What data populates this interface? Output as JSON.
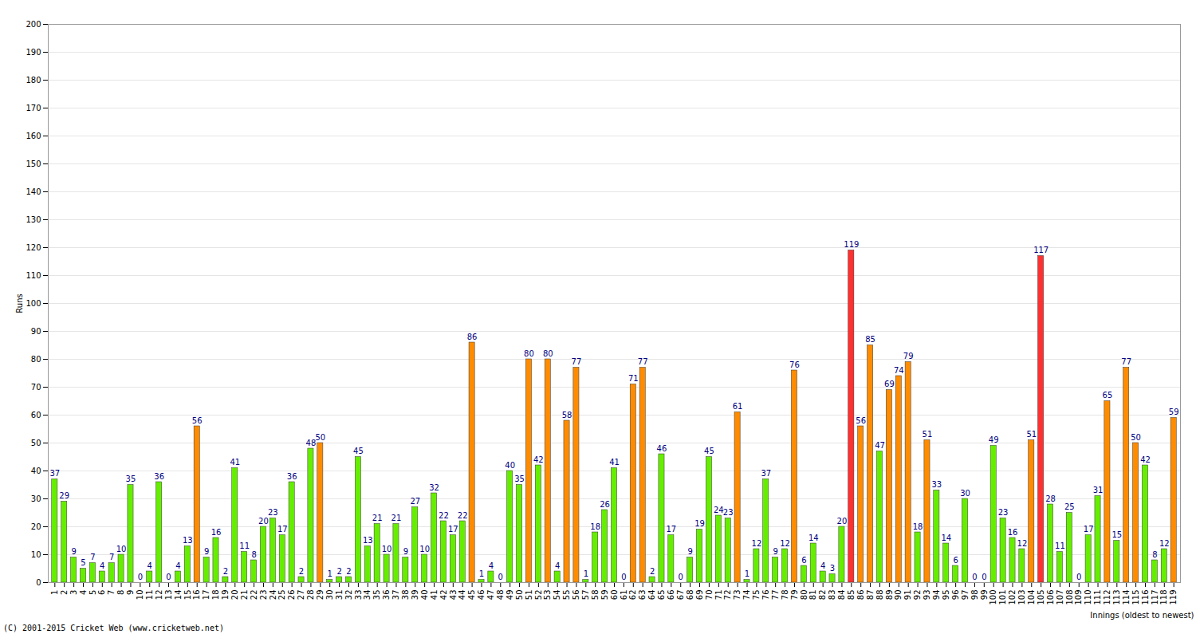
{
  "chart_data": {
    "type": "bar",
    "y_label": "Runs",
    "x_label": "Innings (oldest to newest)",
    "caption": "(C) 2001-2015 Cricket Web (www.cricketweb.net)",
    "categories": [
      "1",
      "2",
      "3",
      "4",
      "5",
      "6",
      "7",
      "8",
      "9",
      "10",
      "11",
      "12",
      "13",
      "14",
      "15",
      "16",
      "17",
      "18",
      "19",
      "20",
      "21",
      "22",
      "23",
      "24",
      "25",
      "26",
      "27",
      "28",
      "29",
      "30",
      "31",
      "32",
      "33",
      "34",
      "35",
      "36",
      "37",
      "38",
      "39",
      "40",
      "41",
      "42",
      "43",
      "44",
      "45",
      "46",
      "47",
      "48",
      "49",
      "50",
      "51",
      "52",
      "53",
      "54",
      "55",
      "56",
      "57",
      "58",
      "59",
      "60",
      "61",
      "62",
      "63",
      "64",
      "65",
      "66",
      "67",
      "68",
      "69",
      "70",
      "71",
      "72",
      "73",
      "74",
      "75",
      "76",
      "77",
      "78",
      "79",
      "80",
      "81",
      "82",
      "83",
      "84",
      "85",
      "86",
      "87",
      "88",
      "89",
      "90",
      "91",
      "92",
      "93",
      "94",
      "95",
      "96",
      "97",
      "98",
      "99",
      "100",
      "101",
      "102",
      "103",
      "104",
      "105",
      "106",
      "107",
      "108",
      "109",
      "110",
      "111",
      "112",
      "113",
      "114",
      "115",
      "116",
      "117",
      "118",
      "119"
    ],
    "values": [
      37,
      29,
      9,
      5,
      7,
      4,
      7,
      10,
      35,
      0,
      4,
      36,
      0,
      4,
      13,
      56,
      9,
      16,
      2,
      41,
      11,
      8,
      20,
      23,
      17,
      36,
      2,
      48,
      50,
      1,
      2,
      2,
      45,
      13,
      21,
      10,
      21,
      9,
      27,
      10,
      32,
      22,
      17,
      22,
      86,
      1,
      4,
      0,
      40,
      35,
      80,
      42,
      80,
      4,
      58,
      77,
      1,
      18,
      26,
      41,
      0,
      71,
      77,
      2,
      46,
      17,
      0,
      9,
      19,
      45,
      24,
      23,
      61,
      1,
      12,
      37,
      9,
      12,
      76,
      6,
      14,
      4,
      3,
      20,
      119,
      56,
      85,
      47,
      69,
      74,
      79,
      18,
      51,
      33,
      14,
      6,
      30,
      0,
      0,
      49,
      23,
      16,
      12,
      51,
      117,
      28,
      11,
      25,
      0,
      17,
      31,
      65,
      15,
      77,
      50,
      42,
      8,
      12,
      59
    ],
    "colors": [
      "#66ee00",
      "#66ee00",
      "#66ee00",
      "#66ee00",
      "#66ee00",
      "#66ee00",
      "#66ee00",
      "#66ee00",
      "#66ee00",
      "#66ee00",
      "#66ee00",
      "#66ee00",
      "#66ee00",
      "#66ee00",
      "#66ee00",
      "#ff8c00",
      "#66ee00",
      "#66ee00",
      "#66ee00",
      "#66ee00",
      "#66ee00",
      "#66ee00",
      "#66ee00",
      "#66ee00",
      "#66ee00",
      "#66ee00",
      "#66ee00",
      "#66ee00",
      "#ff8c00",
      "#66ee00",
      "#66ee00",
      "#66ee00",
      "#66ee00",
      "#66ee00",
      "#66ee00",
      "#66ee00",
      "#66ee00",
      "#66ee00",
      "#66ee00",
      "#66ee00",
      "#66ee00",
      "#66ee00",
      "#66ee00",
      "#66ee00",
      "#ff8c00",
      "#66ee00",
      "#66ee00",
      "#66ee00",
      "#66ee00",
      "#66ee00",
      "#ff8c00",
      "#66ee00",
      "#ff8c00",
      "#66ee00",
      "#ff8c00",
      "#ff8c00",
      "#66ee00",
      "#66ee00",
      "#66ee00",
      "#66ee00",
      "#66ee00",
      "#ff8c00",
      "#ff8c00",
      "#66ee00",
      "#66ee00",
      "#66ee00",
      "#66ee00",
      "#66ee00",
      "#66ee00",
      "#66ee00",
      "#66ee00",
      "#66ee00",
      "#ff8c00",
      "#66ee00",
      "#66ee00",
      "#66ee00",
      "#66ee00",
      "#66ee00",
      "#ff8c00",
      "#66ee00",
      "#66ee00",
      "#66ee00",
      "#66ee00",
      "#66ee00",
      "#ff3030",
      "#ff8c00",
      "#ff8c00",
      "#66ee00",
      "#ff8c00",
      "#ff8c00",
      "#ff8c00",
      "#66ee00",
      "#ff8c00",
      "#66ee00",
      "#66ee00",
      "#66ee00",
      "#66ee00",
      "#66ee00",
      "#66ee00",
      "#66ee00",
      "#66ee00",
      "#66ee00",
      "#66ee00",
      "#ff8c00",
      "#ff3030",
      "#66ee00",
      "#66ee00",
      "#66ee00",
      "#66ee00",
      "#66ee00",
      "#66ee00",
      "#ff8c00",
      "#66ee00",
      "#ff8c00",
      "#ff8c00",
      "#66ee00",
      "#66ee00",
      "#66ee00",
      "#ff8c00"
    ],
    "ylim": [
      0,
      200
    ],
    "yticks": [
      0,
      10,
      20,
      30,
      40,
      50,
      60,
      70,
      80,
      90,
      100,
      110,
      120,
      130,
      140,
      150,
      160,
      170,
      180,
      190,
      200
    ],
    "grid": true,
    "data_labels": true
  }
}
